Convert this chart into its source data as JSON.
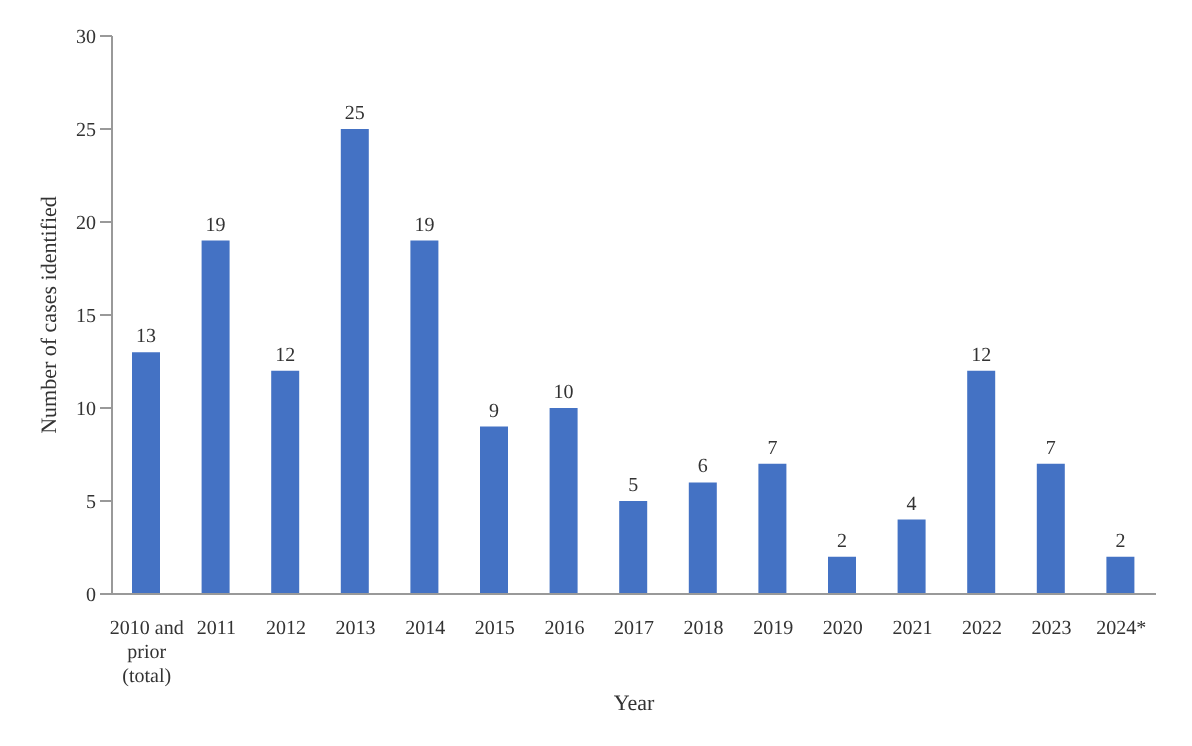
{
  "chart_data": {
    "type": "bar",
    "xlabel": "Year",
    "ylabel": "Number of cases identified",
    "categories": [
      "2010 and prior (total)",
      "2011",
      "2012",
      "2013",
      "2014",
      "2015",
      "2016",
      "2017",
      "2018",
      "2019",
      "2020",
      "2021",
      "2022",
      "2023",
      "2024*"
    ],
    "values": [
      13,
      19,
      12,
      25,
      19,
      9,
      10,
      5,
      6,
      7,
      2,
      4,
      12,
      7,
      2
    ],
    "color": "#4472c4",
    "ylim": [
      0,
      30
    ],
    "yticks": [
      0,
      5,
      10,
      15,
      20,
      25,
      30
    ],
    "grid": false,
    "data_labels": true
  }
}
